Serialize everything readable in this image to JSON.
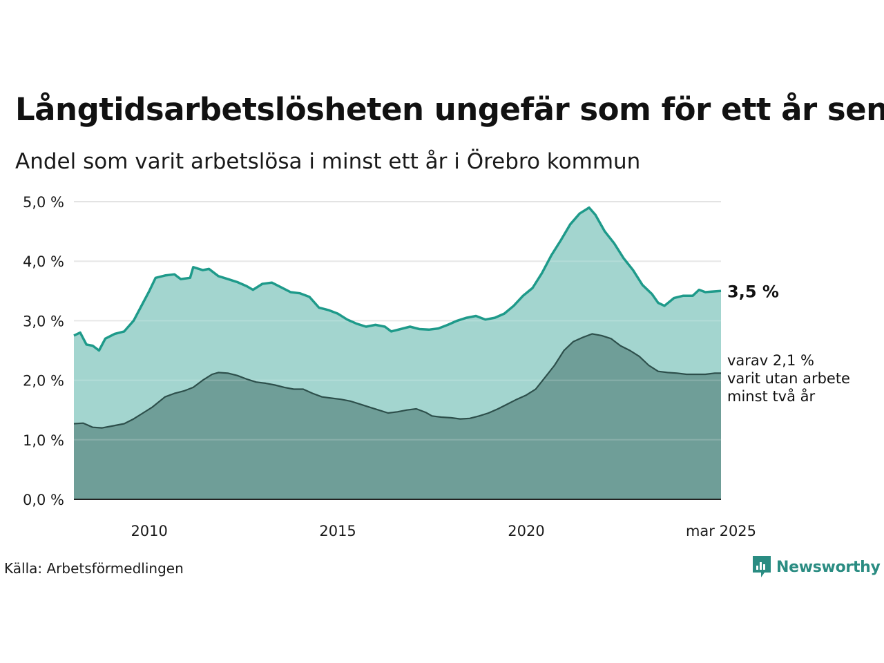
{
  "title": "Långtidsarbetslösheten ungefär som för ett år sen",
  "subtitle": "Andel som varit arbetslösa i minst ett år i Örebro kommun",
  "source": "Källa: Arbetsförmedlingen",
  "brand": "Newsworthy",
  "colors": {
    "upper_fill": "#a3d5cf",
    "upper_line": "#1e9a8a",
    "lower_fill": "#6f9e98",
    "lower_line": "#2d4f4b",
    "grid": "#e3e3e3",
    "brand": "#2a8c82"
  },
  "chart_data": {
    "type": "area",
    "x_start": "2008-01",
    "x_end": "2025-03",
    "xlim": [
      "2008-01",
      "2025-03"
    ],
    "ylim": [
      0,
      5.0
    ],
    "y_ticks": [
      "0,0 %",
      "1,0 %",
      "2,0 %",
      "3,0 %",
      "4,0 %",
      "5,0 %"
    ],
    "y_tick_values": [
      0,
      1,
      2,
      3,
      4,
      5
    ],
    "x_ticks": [
      "2010",
      "2015",
      "2020",
      "mar 2025"
    ],
    "x_tick_dates": [
      "2010-01",
      "2015-01",
      "2020-01",
      "2025-03"
    ],
    "grid": true,
    "end_label": "3,5 %",
    "annotation": [
      "varav 2,1 %",
      "varit utan arbete",
      "minst två år"
    ],
    "series": [
      {
        "name": "minst ett år",
        "points": [
          [
            "2008-01",
            2.75
          ],
          [
            "2008-03",
            2.8
          ],
          [
            "2008-05",
            2.6
          ],
          [
            "2008-07",
            2.58
          ],
          [
            "2008-09",
            2.5
          ],
          [
            "2008-11",
            2.7
          ],
          [
            "2009-02",
            2.78
          ],
          [
            "2009-05",
            2.82
          ],
          [
            "2009-08",
            3.0
          ],
          [
            "2009-11",
            3.3
          ],
          [
            "2010-01",
            3.5
          ],
          [
            "2010-03",
            3.72
          ],
          [
            "2010-06",
            3.76
          ],
          [
            "2010-09",
            3.78
          ],
          [
            "2010-11",
            3.7
          ],
          [
            "2011-02",
            3.72
          ],
          [
            "2011-03",
            3.9
          ],
          [
            "2011-06",
            3.85
          ],
          [
            "2011-08",
            3.87
          ],
          [
            "2011-11",
            3.75
          ],
          [
            "2012-02",
            3.7
          ],
          [
            "2012-05",
            3.65
          ],
          [
            "2012-08",
            3.58
          ],
          [
            "2012-10",
            3.52
          ],
          [
            "2013-01",
            3.62
          ],
          [
            "2013-04",
            3.64
          ],
          [
            "2013-07",
            3.56
          ],
          [
            "2013-10",
            3.48
          ],
          [
            "2014-01",
            3.46
          ],
          [
            "2014-04",
            3.4
          ],
          [
            "2014-07",
            3.22
          ],
          [
            "2014-10",
            3.18
          ],
          [
            "2015-01",
            3.12
          ],
          [
            "2015-04",
            3.02
          ],
          [
            "2015-07",
            2.95
          ],
          [
            "2015-10",
            2.9
          ],
          [
            "2016-01",
            2.93
          ],
          [
            "2016-04",
            2.9
          ],
          [
            "2016-06",
            2.82
          ],
          [
            "2016-09",
            2.86
          ],
          [
            "2016-12",
            2.9
          ],
          [
            "2017-03",
            2.86
          ],
          [
            "2017-06",
            2.85
          ],
          [
            "2017-09",
            2.87
          ],
          [
            "2017-12",
            2.93
          ],
          [
            "2018-03",
            3.0
          ],
          [
            "2018-06",
            3.05
          ],
          [
            "2018-09",
            3.08
          ],
          [
            "2018-12",
            3.02
          ],
          [
            "2019-03",
            3.05
          ],
          [
            "2019-06",
            3.12
          ],
          [
            "2019-09",
            3.25
          ],
          [
            "2019-12",
            3.42
          ],
          [
            "2020-03",
            3.55
          ],
          [
            "2020-06",
            3.8
          ],
          [
            "2020-09",
            4.1
          ],
          [
            "2020-12",
            4.35
          ],
          [
            "2021-03",
            4.62
          ],
          [
            "2021-06",
            4.8
          ],
          [
            "2021-09",
            4.9
          ],
          [
            "2021-11",
            4.78
          ],
          [
            "2022-02",
            4.5
          ],
          [
            "2022-05",
            4.3
          ],
          [
            "2022-08",
            4.05
          ],
          [
            "2022-11",
            3.85
          ],
          [
            "2023-02",
            3.6
          ],
          [
            "2023-05",
            3.45
          ],
          [
            "2023-07",
            3.3
          ],
          [
            "2023-09",
            3.25
          ],
          [
            "2023-12",
            3.38
          ],
          [
            "2024-03",
            3.42
          ],
          [
            "2024-06",
            3.42
          ],
          [
            "2024-08",
            3.52
          ],
          [
            "2024-10",
            3.48
          ],
          [
            "2024-12",
            3.49
          ],
          [
            "2025-03",
            3.5
          ]
        ]
      },
      {
        "name": "minst två år",
        "points": [
          [
            "2008-01",
            1.27
          ],
          [
            "2008-04",
            1.28
          ],
          [
            "2008-07",
            1.21
          ],
          [
            "2008-10",
            1.2
          ],
          [
            "2009-01",
            1.23
          ],
          [
            "2009-05",
            1.27
          ],
          [
            "2009-08",
            1.35
          ],
          [
            "2009-11",
            1.45
          ],
          [
            "2010-02",
            1.55
          ],
          [
            "2010-06",
            1.72
          ],
          [
            "2010-09",
            1.78
          ],
          [
            "2010-12",
            1.82
          ],
          [
            "2011-03",
            1.88
          ],
          [
            "2011-06",
            2.0
          ],
          [
            "2011-09",
            2.1
          ],
          [
            "2011-11",
            2.13
          ],
          [
            "2012-02",
            2.12
          ],
          [
            "2012-05",
            2.08
          ],
          [
            "2012-08",
            2.02
          ],
          [
            "2012-11",
            1.97
          ],
          [
            "2013-02",
            1.95
          ],
          [
            "2013-05",
            1.92
          ],
          [
            "2013-08",
            1.88
          ],
          [
            "2013-11",
            1.85
          ],
          [
            "2014-02",
            1.85
          ],
          [
            "2014-05",
            1.78
          ],
          [
            "2014-08",
            1.72
          ],
          [
            "2014-11",
            1.7
          ],
          [
            "2015-02",
            1.68
          ],
          [
            "2015-05",
            1.65
          ],
          [
            "2015-08",
            1.6
          ],
          [
            "2015-11",
            1.55
          ],
          [
            "2016-02",
            1.5
          ],
          [
            "2016-05",
            1.45
          ],
          [
            "2016-08",
            1.47
          ],
          [
            "2016-11",
            1.5
          ],
          [
            "2017-02",
            1.52
          ],
          [
            "2017-05",
            1.46
          ],
          [
            "2017-07",
            1.4
          ],
          [
            "2017-10",
            1.38
          ],
          [
            "2018-01",
            1.37
          ],
          [
            "2018-04",
            1.35
          ],
          [
            "2018-07",
            1.36
          ],
          [
            "2018-10",
            1.4
          ],
          [
            "2019-01",
            1.45
          ],
          [
            "2019-04",
            1.52
          ],
          [
            "2019-07",
            1.6
          ],
          [
            "2019-10",
            1.68
          ],
          [
            "2020-01",
            1.75
          ],
          [
            "2020-04",
            1.85
          ],
          [
            "2020-07",
            2.05
          ],
          [
            "2020-10",
            2.25
          ],
          [
            "2021-01",
            2.5
          ],
          [
            "2021-04",
            2.65
          ],
          [
            "2021-07",
            2.72
          ],
          [
            "2021-10",
            2.78
          ],
          [
            "2022-01",
            2.75
          ],
          [
            "2022-04",
            2.7
          ],
          [
            "2022-07",
            2.58
          ],
          [
            "2022-10",
            2.5
          ],
          [
            "2023-01",
            2.4
          ],
          [
            "2023-04",
            2.25
          ],
          [
            "2023-07",
            2.15
          ],
          [
            "2023-10",
            2.13
          ],
          [
            "2024-01",
            2.12
          ],
          [
            "2024-04",
            2.1
          ],
          [
            "2024-07",
            2.1
          ],
          [
            "2024-10",
            2.1
          ],
          [
            "2025-01",
            2.12
          ],
          [
            "2025-03",
            2.12
          ]
        ]
      }
    ]
  }
}
